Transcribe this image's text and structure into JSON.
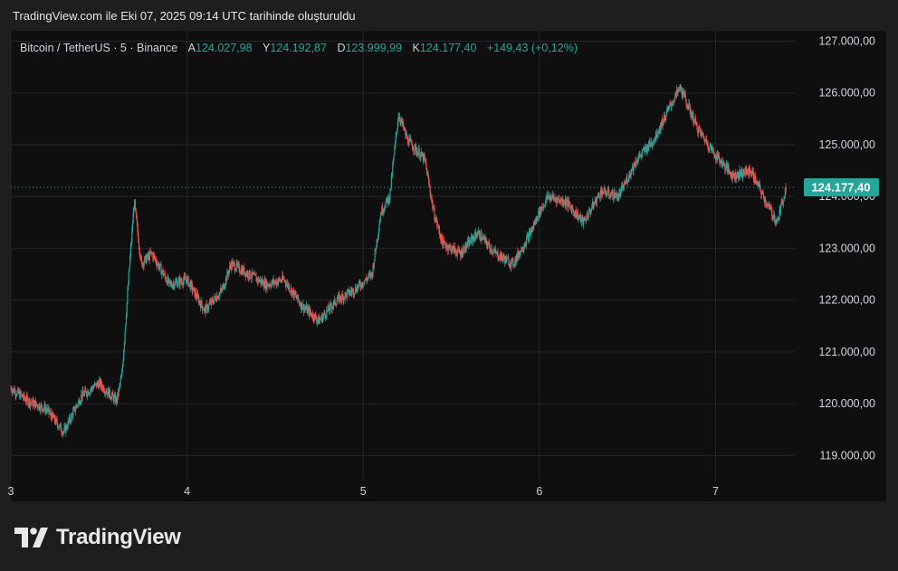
{
  "header": {
    "title": "TradingView.com ile Eki 07, 2025 09:14 UTC tarihinde oluşturuldu"
  },
  "legend": {
    "symbol": "Bitcoin / TetherUS · 5 · Binance",
    "open_label": "A",
    "open": "124.027,98",
    "high_label": "Y",
    "high": "124.192,87",
    "low_label": "D",
    "low": "123.999,99",
    "close_label": "K",
    "close": "124.177,40",
    "change": "+149,43 (+0,12%)"
  },
  "colors": {
    "up": "#26a69a",
    "down": "#ef5350",
    "background": "#0f0f0f",
    "grid": "#262626"
  },
  "logo": {
    "text": "TradingView",
    "icon": "tradingview-logo-icon"
  },
  "chart_data": {
    "type": "candlestick",
    "title": "Bitcoin / TetherUS · 5 · Binance",
    "last_price": 124177.4,
    "last_price_label": "124.177,40",
    "ylim": [
      118500,
      127200
    ],
    "y_ticks": [
      {
        "value": 127000,
        "label": "127.000,00"
      },
      {
        "value": 126000,
        "label": "126.000,00"
      },
      {
        "value": 125000,
        "label": "125.000,00"
      },
      {
        "value": 124000,
        "label": "124.000,00"
      },
      {
        "value": 123000,
        "label": "123.000,00"
      },
      {
        "value": 122000,
        "label": "122.000,00"
      },
      {
        "value": 121000,
        "label": "121.000,00"
      },
      {
        "value": 120000,
        "label": "120.000,00"
      },
      {
        "value": 119000,
        "label": "119.000,00"
      }
    ],
    "x_ticks": [
      {
        "day": 3,
        "label": "3"
      },
      {
        "day": 4,
        "label": "4"
      },
      {
        "day": 5,
        "label": "5"
      },
      {
        "day": 6,
        "label": "6"
      },
      {
        "day": 7,
        "label": "7"
      }
    ],
    "xlim": [
      3,
      7.45
    ],
    "grid": true,
    "price_path": [
      [
        3.0,
        120300
      ],
      [
        3.1,
        120050
      ],
      [
        3.2,
        119900
      ],
      [
        3.3,
        119450
      ],
      [
        3.4,
        120150
      ],
      [
        3.5,
        120400
      ],
      [
        3.6,
        120050
      ],
      [
        3.63,
        120550
      ],
      [
        3.67,
        122500
      ],
      [
        3.7,
        123900
      ],
      [
        3.74,
        122700
      ],
      [
        3.8,
        122900
      ],
      [
        3.9,
        122300
      ],
      [
        4.0,
        122400
      ],
      [
        4.1,
        121800
      ],
      [
        4.2,
        122200
      ],
      [
        4.25,
        122700
      ],
      [
        4.35,
        122500
      ],
      [
        4.45,
        122300
      ],
      [
        4.55,
        122400
      ],
      [
        4.65,
        121900
      ],
      [
        4.75,
        121600
      ],
      [
        4.85,
        122000
      ],
      [
        4.95,
        122200
      ],
      [
        5.05,
        122500
      ],
      [
        5.1,
        123700
      ],
      [
        5.15,
        124000
      ],
      [
        5.2,
        125600
      ],
      [
        5.25,
        125100
      ],
      [
        5.35,
        124700
      ],
      [
        5.4,
        123700
      ],
      [
        5.45,
        123100
      ],
      [
        5.55,
        122900
      ],
      [
        5.65,
        123300
      ],
      [
        5.75,
        122900
      ],
      [
        5.85,
        122700
      ],
      [
        5.95,
        123300
      ],
      [
        6.0,
        123700
      ],
      [
        6.05,
        124000
      ],
      [
        6.15,
        123900
      ],
      [
        6.25,
        123500
      ],
      [
        6.35,
        124100
      ],
      [
        6.45,
        124000
      ],
      [
        6.55,
        124700
      ],
      [
        6.65,
        125100
      ],
      [
        6.75,
        125800
      ],
      [
        6.8,
        126100
      ],
      [
        6.9,
        125300
      ],
      [
        7.0,
        124800
      ],
      [
        7.1,
        124400
      ],
      [
        7.2,
        124500
      ],
      [
        7.3,
        123800
      ],
      [
        7.35,
        123500
      ],
      [
        7.4,
        124177
      ]
    ]
  }
}
